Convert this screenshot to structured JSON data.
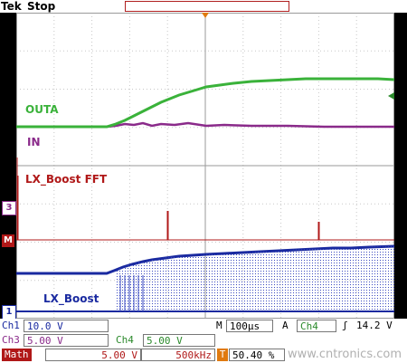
{
  "header": {
    "brand": "Tek",
    "status": "Stop"
  },
  "labels": {
    "outa": "OUTA",
    "in": "IN",
    "fft": "LX_Boost FFT",
    "lx": "LX_Boost"
  },
  "markers": {
    "ch3": "3",
    "math": "M",
    "ch1": "1"
  },
  "readout": {
    "ch1_name": "Ch1",
    "ch1_scale": "10.0 V",
    "ch3_name": "Ch3",
    "ch3_scale": "5.00 V",
    "ch4_name": "Ch4",
    "ch4_scale": "5.00 V",
    "math_name": "Math",
    "math_scale": "5.00 V",
    "math_freq": "500kHz",
    "horiz_label": "M",
    "horiz_scale": "100µs",
    "trig_mode": "A",
    "trig_ch": "Ch4",
    "trig_slope": "ʃ",
    "trig_level": "14.2 V",
    "trig_pos_icon": "T",
    "trig_pos": "50.40 %"
  },
  "watermark": "www.cntronics.com",
  "colors": {
    "ch1": "#1a2aa0",
    "ch3": "#8a2a8a",
    "ch4": "#2c8a2c",
    "math": "#b01818"
  }
}
